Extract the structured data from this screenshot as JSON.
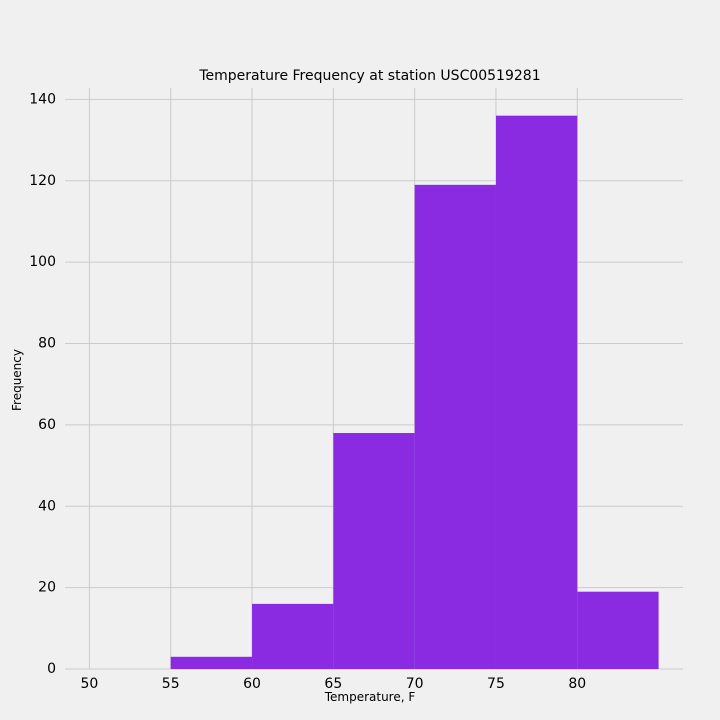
{
  "chart_data": {
    "type": "bar",
    "title": "Temperature Frequency at station USC00519281",
    "xlabel": "Temperature, F",
    "ylabel": "Frequency",
    "bins": [
      {
        "start": 55,
        "end": 60,
        "value": 3
      },
      {
        "start": 60,
        "end": 65,
        "value": 16
      },
      {
        "start": 65,
        "end": 70,
        "value": 58
      },
      {
        "start": 70,
        "end": 75,
        "value": 119
      },
      {
        "start": 75,
        "end": 80,
        "value": 136
      },
      {
        "start": 80,
        "end": 85,
        "value": 19
      }
    ],
    "xlim": [
      48.5,
      86.5
    ],
    "ylim": [
      0,
      142.8
    ],
    "xticks": [
      50,
      55,
      60,
      65,
      70,
      75,
      80
    ],
    "yticks": [
      0,
      20,
      40,
      60,
      80,
      100,
      120,
      140
    ],
    "grid": true,
    "bar_color": "#8a2be2",
    "background_color": "#f0f0f0",
    "grid_color": "#cbcbcb"
  }
}
